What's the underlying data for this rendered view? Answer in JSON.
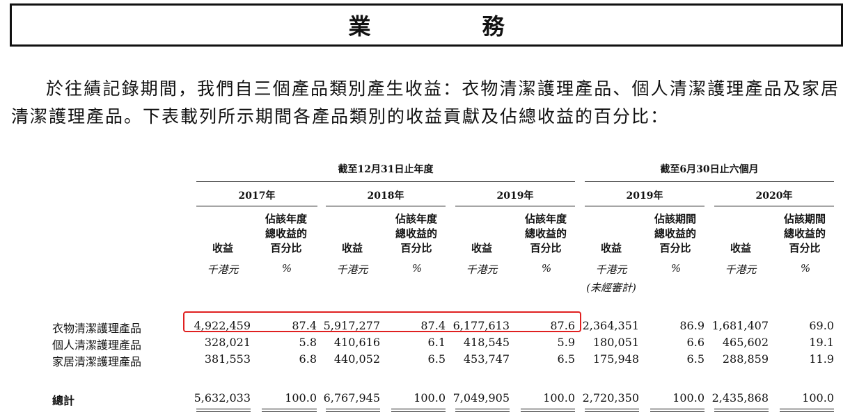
{
  "title": "業　務",
  "paragraph": "於往績記錄期間，我們自三個產品類別產生收益：衣物清潔護理產品、個人清潔護理產品及家居清潔護理產品。下表載列所示期間各產品類別的收益貢獻及佔總收益的百分比：",
  "table": {
    "period_headers": [
      "截至12月31日止年度",
      "截至6月30日止六個月"
    ],
    "years": [
      "2017年",
      "2018年",
      "2019年",
      "2019年",
      "2020年"
    ],
    "revenue_label": "收益",
    "pct_label_year": "佔該年度總收益的百分比",
    "pct_label_period": "佔該期間總收益的百分比",
    "unit_revenue": "千港元",
    "unit_pct": "%",
    "unaudited_note": "(未經審計)",
    "rows": [
      {
        "label": "衣物清潔護理產品",
        "values": [
          "4,922,459",
          "87.4",
          "5,917,277",
          "87.4",
          "6,177,613",
          "87.6",
          "2,364,351",
          "86.9",
          "1,681,407",
          "69.0"
        ]
      },
      {
        "label": "個人清潔護理產品",
        "values": [
          "328,021",
          "5.8",
          "410,616",
          "6.1",
          "418,545",
          "5.9",
          "180,051",
          "6.6",
          "465,602",
          "19.1"
        ]
      },
      {
        "label": "家居清潔護理產品",
        "values": [
          "381,553",
          "6.8",
          "440,052",
          "6.5",
          "453,747",
          "6.5",
          "175,948",
          "6.5",
          "288,859",
          "11.9"
        ]
      }
    ],
    "total": {
      "label": "總計",
      "values": [
        "5,632,033",
        "100.0",
        "6,767,945",
        "100.0",
        "7,049,905",
        "100.0",
        "2,720,350",
        "100.0",
        "2,435,868",
        "100.0"
      ]
    }
  },
  "highlight_color": "#e02020"
}
